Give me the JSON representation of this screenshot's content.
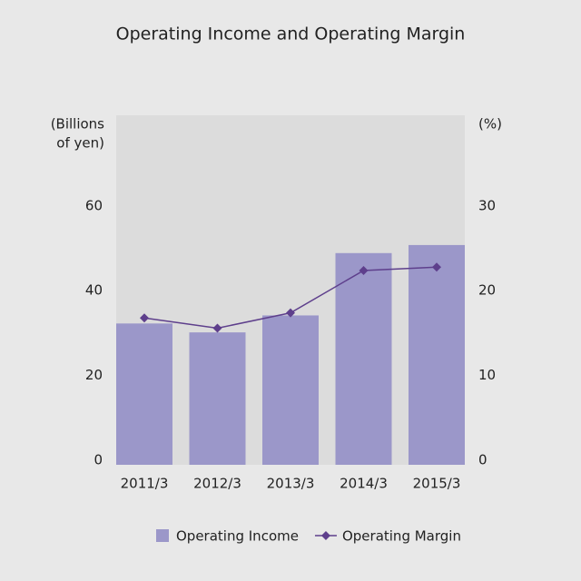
{
  "chart_data": {
    "type": "bar",
    "title": "Operating Income and Operating Margin",
    "y_label": [
      "(Billions",
      "of yen)"
    ],
    "y2_label": "(%)",
    "categories": [
      "2011/3",
      "2012/3",
      "2013/3",
      "2014/3",
      "2015/3"
    ],
    "series": [
      {
        "name": "Operating Income",
        "type": "bar",
        "color": "#9b97c9",
        "values": [
          32.9,
          30.8,
          34.8,
          49.5,
          51.4
        ]
      },
      {
        "name": "Operating Margin",
        "type": "line",
        "axis": "y2",
        "color": "#5e3f8c",
        "values": [
          17.1,
          15.9,
          17.7,
          22.7,
          23.1
        ]
      }
    ],
    "ylim": [
      0,
      82
    ],
    "yticks": [
      0,
      20,
      40,
      60
    ],
    "y2lim": [
      0,
      41
    ],
    "y2ticks": [
      0,
      10,
      20,
      30
    ],
    "plot_background": "#dcdcdc"
  }
}
